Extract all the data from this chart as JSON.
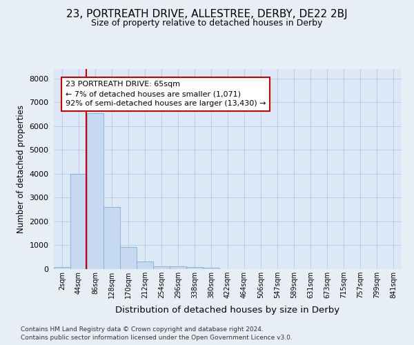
{
  "title": "23, PORTREATH DRIVE, ALLESTREE, DERBY, DE22 2BJ",
  "subtitle": "Size of property relative to detached houses in Derby",
  "xlabel": "Distribution of detached houses by size in Derby",
  "ylabel": "Number of detached properties",
  "footer_line1": "Contains HM Land Registry data © Crown copyright and database right 2024.",
  "footer_line2": "Contains public sector information licensed under the Open Government Licence v3.0.",
  "bar_labels": [
    "2sqm",
    "44sqm",
    "86sqm",
    "128sqm",
    "170sqm",
    "212sqm",
    "254sqm",
    "296sqm",
    "338sqm",
    "380sqm",
    "422sqm",
    "464sqm",
    "506sqm",
    "547sqm",
    "589sqm",
    "631sqm",
    "673sqm",
    "715sqm",
    "757sqm",
    "799sqm",
    "841sqm"
  ],
  "bar_values": [
    75,
    3990,
    6560,
    2620,
    940,
    305,
    130,
    110,
    80,
    55,
    0,
    0,
    0,
    0,
    0,
    0,
    0,
    0,
    0,
    0,
    0
  ],
  "bar_color": "#c6d9f0",
  "bar_edgecolor": "#7aaed6",
  "ylim_max": 8400,
  "yticks": [
    0,
    1000,
    2000,
    3000,
    4000,
    5000,
    6000,
    7000,
    8000
  ],
  "property_line_x": 1.45,
  "annotation_text": "23 PORTREATH DRIVE: 65sqm\n← 7% of detached houses are smaller (1,071)\n92% of semi-detached houses are larger (13,430) →",
  "annotation_box_edgecolor": "#cc0000",
  "background_color": "#e8eef5",
  "plot_bg_color": "#dce8f5",
  "grid_color": "#b0c4d8",
  "title_fontsize": 11,
  "subtitle_fontsize": 9
}
